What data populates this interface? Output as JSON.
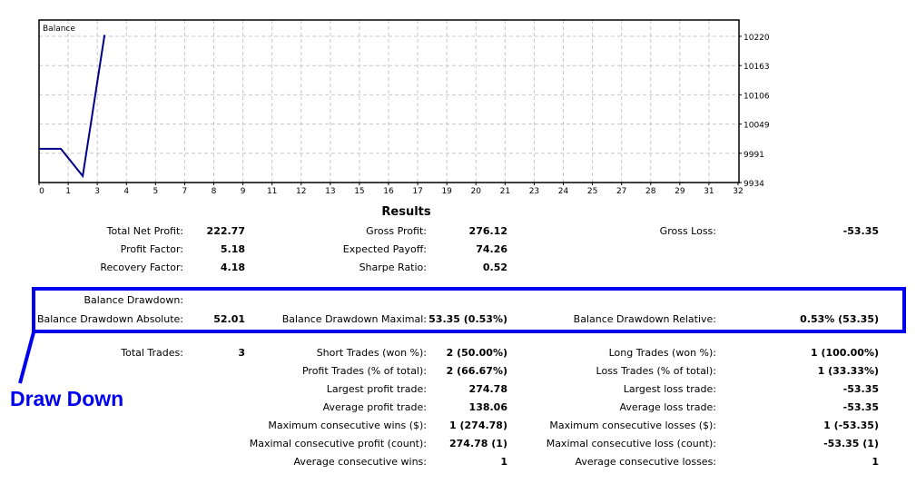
{
  "chart_data": {
    "type": "line",
    "title": "Balance",
    "x": [
      0,
      1,
      2,
      3
    ],
    "series": [
      {
        "values": [
          10000,
          10000,
          9946.65,
          10222.77
        ],
        "color": "#00008b"
      }
    ],
    "xlim": [
      0,
      32
    ],
    "ylim": [
      9934,
      10220
    ],
    "x_tick_labels": [
      "0",
      "1",
      "3",
      "4",
      "5",
      "7",
      "8",
      "9",
      "11",
      "12",
      "13",
      "15",
      "16",
      "17",
      "19",
      "20",
      "21",
      "23",
      "24",
      "25",
      "27",
      "28",
      "29",
      "31",
      "32"
    ],
    "y_tick_labels": [
      "10220",
      "10163",
      "10106",
      "10049",
      "9991",
      "9934"
    ],
    "grid": true
  },
  "results": {
    "title": "Results",
    "rows": [
      [
        [
          "Total Net Profit:",
          "222.77"
        ],
        [
          "Gross Profit:",
          "276.12"
        ],
        [
          "Gross Loss:",
          "-53.35"
        ]
      ],
      [
        [
          "Profit Factor:",
          "5.18"
        ],
        [
          "Expected Payoff:",
          "74.26"
        ],
        null
      ],
      [
        [
          "Recovery Factor:",
          "4.18"
        ],
        [
          "Sharpe Ratio:",
          "0.52"
        ],
        null
      ]
    ],
    "drawdown_rows": [
      [
        [
          "Balance Drawdown:",
          ""
        ],
        null,
        null
      ],
      [
        [
          "Balance Drawdown Absolute:",
          "52.01"
        ],
        [
          "Balance Drawdown Maximal:",
          "53.35 (0.53%)"
        ],
        [
          "Balance Drawdown Relative:",
          "0.53% (53.35)"
        ]
      ]
    ],
    "trade_rows": [
      [
        [
          "Total Trades:",
          "3"
        ],
        [
          "Short Trades (won %):",
          "2 (50.00%)"
        ],
        [
          "Long Trades (won %):",
          "1 (100.00%)"
        ]
      ],
      [
        null,
        [
          "Profit Trades (% of total):",
          "2 (66.67%)"
        ],
        [
          "Loss Trades (% of total):",
          "1 (33.33%)"
        ]
      ],
      [
        null,
        [
          "Largest profit trade:",
          "274.78"
        ],
        [
          "Largest loss trade:",
          "-53.35"
        ]
      ],
      [
        null,
        [
          "Average profit trade:",
          "138.06"
        ],
        [
          "Average loss trade:",
          "-53.35"
        ]
      ],
      [
        null,
        [
          "Maximum consecutive wins ($):",
          "1 (274.78)"
        ],
        [
          "Maximum consecutive losses ($):",
          "1 (-53.35)"
        ]
      ],
      [
        null,
        [
          "Maximal consecutive profit (count):",
          "274.78 (1)"
        ],
        [
          "Maximal consecutive loss (count):",
          "-53.35 (1)"
        ]
      ],
      [
        null,
        [
          "Average consecutive wins:",
          "1"
        ],
        [
          "Average consecutive losses:",
          "1"
        ]
      ]
    ]
  },
  "annotation": {
    "label": "Draw Down",
    "color": "#0000ee"
  }
}
